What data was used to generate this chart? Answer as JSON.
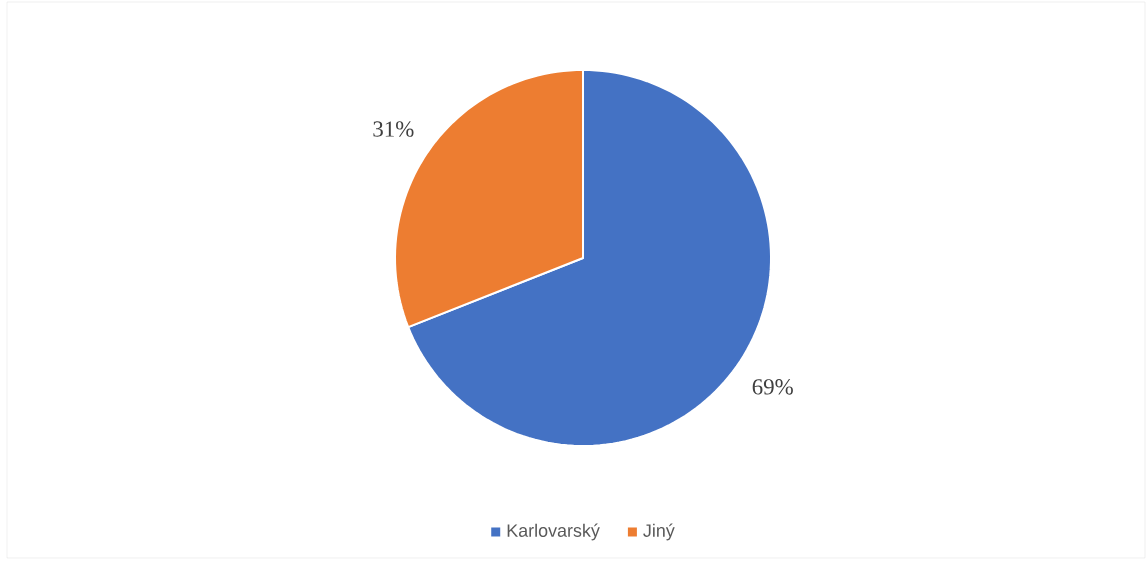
{
  "chart_data": {
    "type": "pie",
    "categories": [
      "Karlovarský",
      "Jiný"
    ],
    "values": [
      69,
      31
    ],
    "colors": [
      "#4472c4",
      "#ed7d31"
    ],
    "value_labels": [
      "69%",
      "31%"
    ],
    "legend": "bottom"
  }
}
